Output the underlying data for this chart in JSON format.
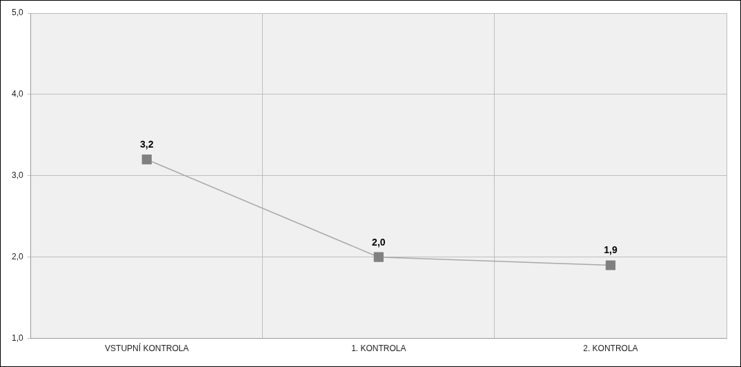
{
  "chart_data": {
    "type": "line",
    "categories": [
      "VSTUPNÍ KONTROLA",
      "1. KONTROLA",
      "2. KONTROLA"
    ],
    "series": [
      {
        "color": "#808080",
        "values": [
          3.2,
          2.0,
          1.9
        ],
        "value_labels": [
          "3,2",
          "2,0",
          "1,9"
        ]
      }
    ],
    "ylim": [
      1,
      5
    ],
    "yticks": [
      {
        "value": 1,
        "label": "1,0"
      },
      {
        "value": 2,
        "label": "2,0"
      },
      {
        "value": 3,
        "label": "3,0"
      },
      {
        "value": 4,
        "label": "4,0"
      },
      {
        "value": 5,
        "label": "5,0"
      }
    ],
    "grid": true,
    "legend": false,
    "marker": "square",
    "line_style": "solid"
  }
}
